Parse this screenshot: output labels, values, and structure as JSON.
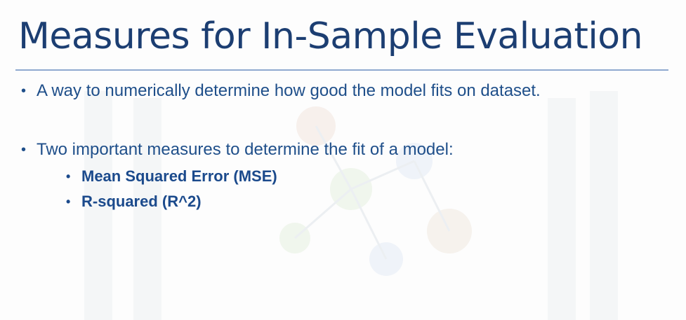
{
  "slide": {
    "title": "Measures for In-Sample Evaluation",
    "bullets": [
      "A way to numerically determine how good the model fits on dataset.",
      "Two important measures to determine the fit of a model:"
    ],
    "sub_bullets": [
      "Mean Squared Error (MSE)",
      "R-squared (R^2)"
    ]
  },
  "colors": {
    "title": "#1c3e72",
    "text": "#1f4f8a",
    "rule": "#8fa9cf"
  }
}
